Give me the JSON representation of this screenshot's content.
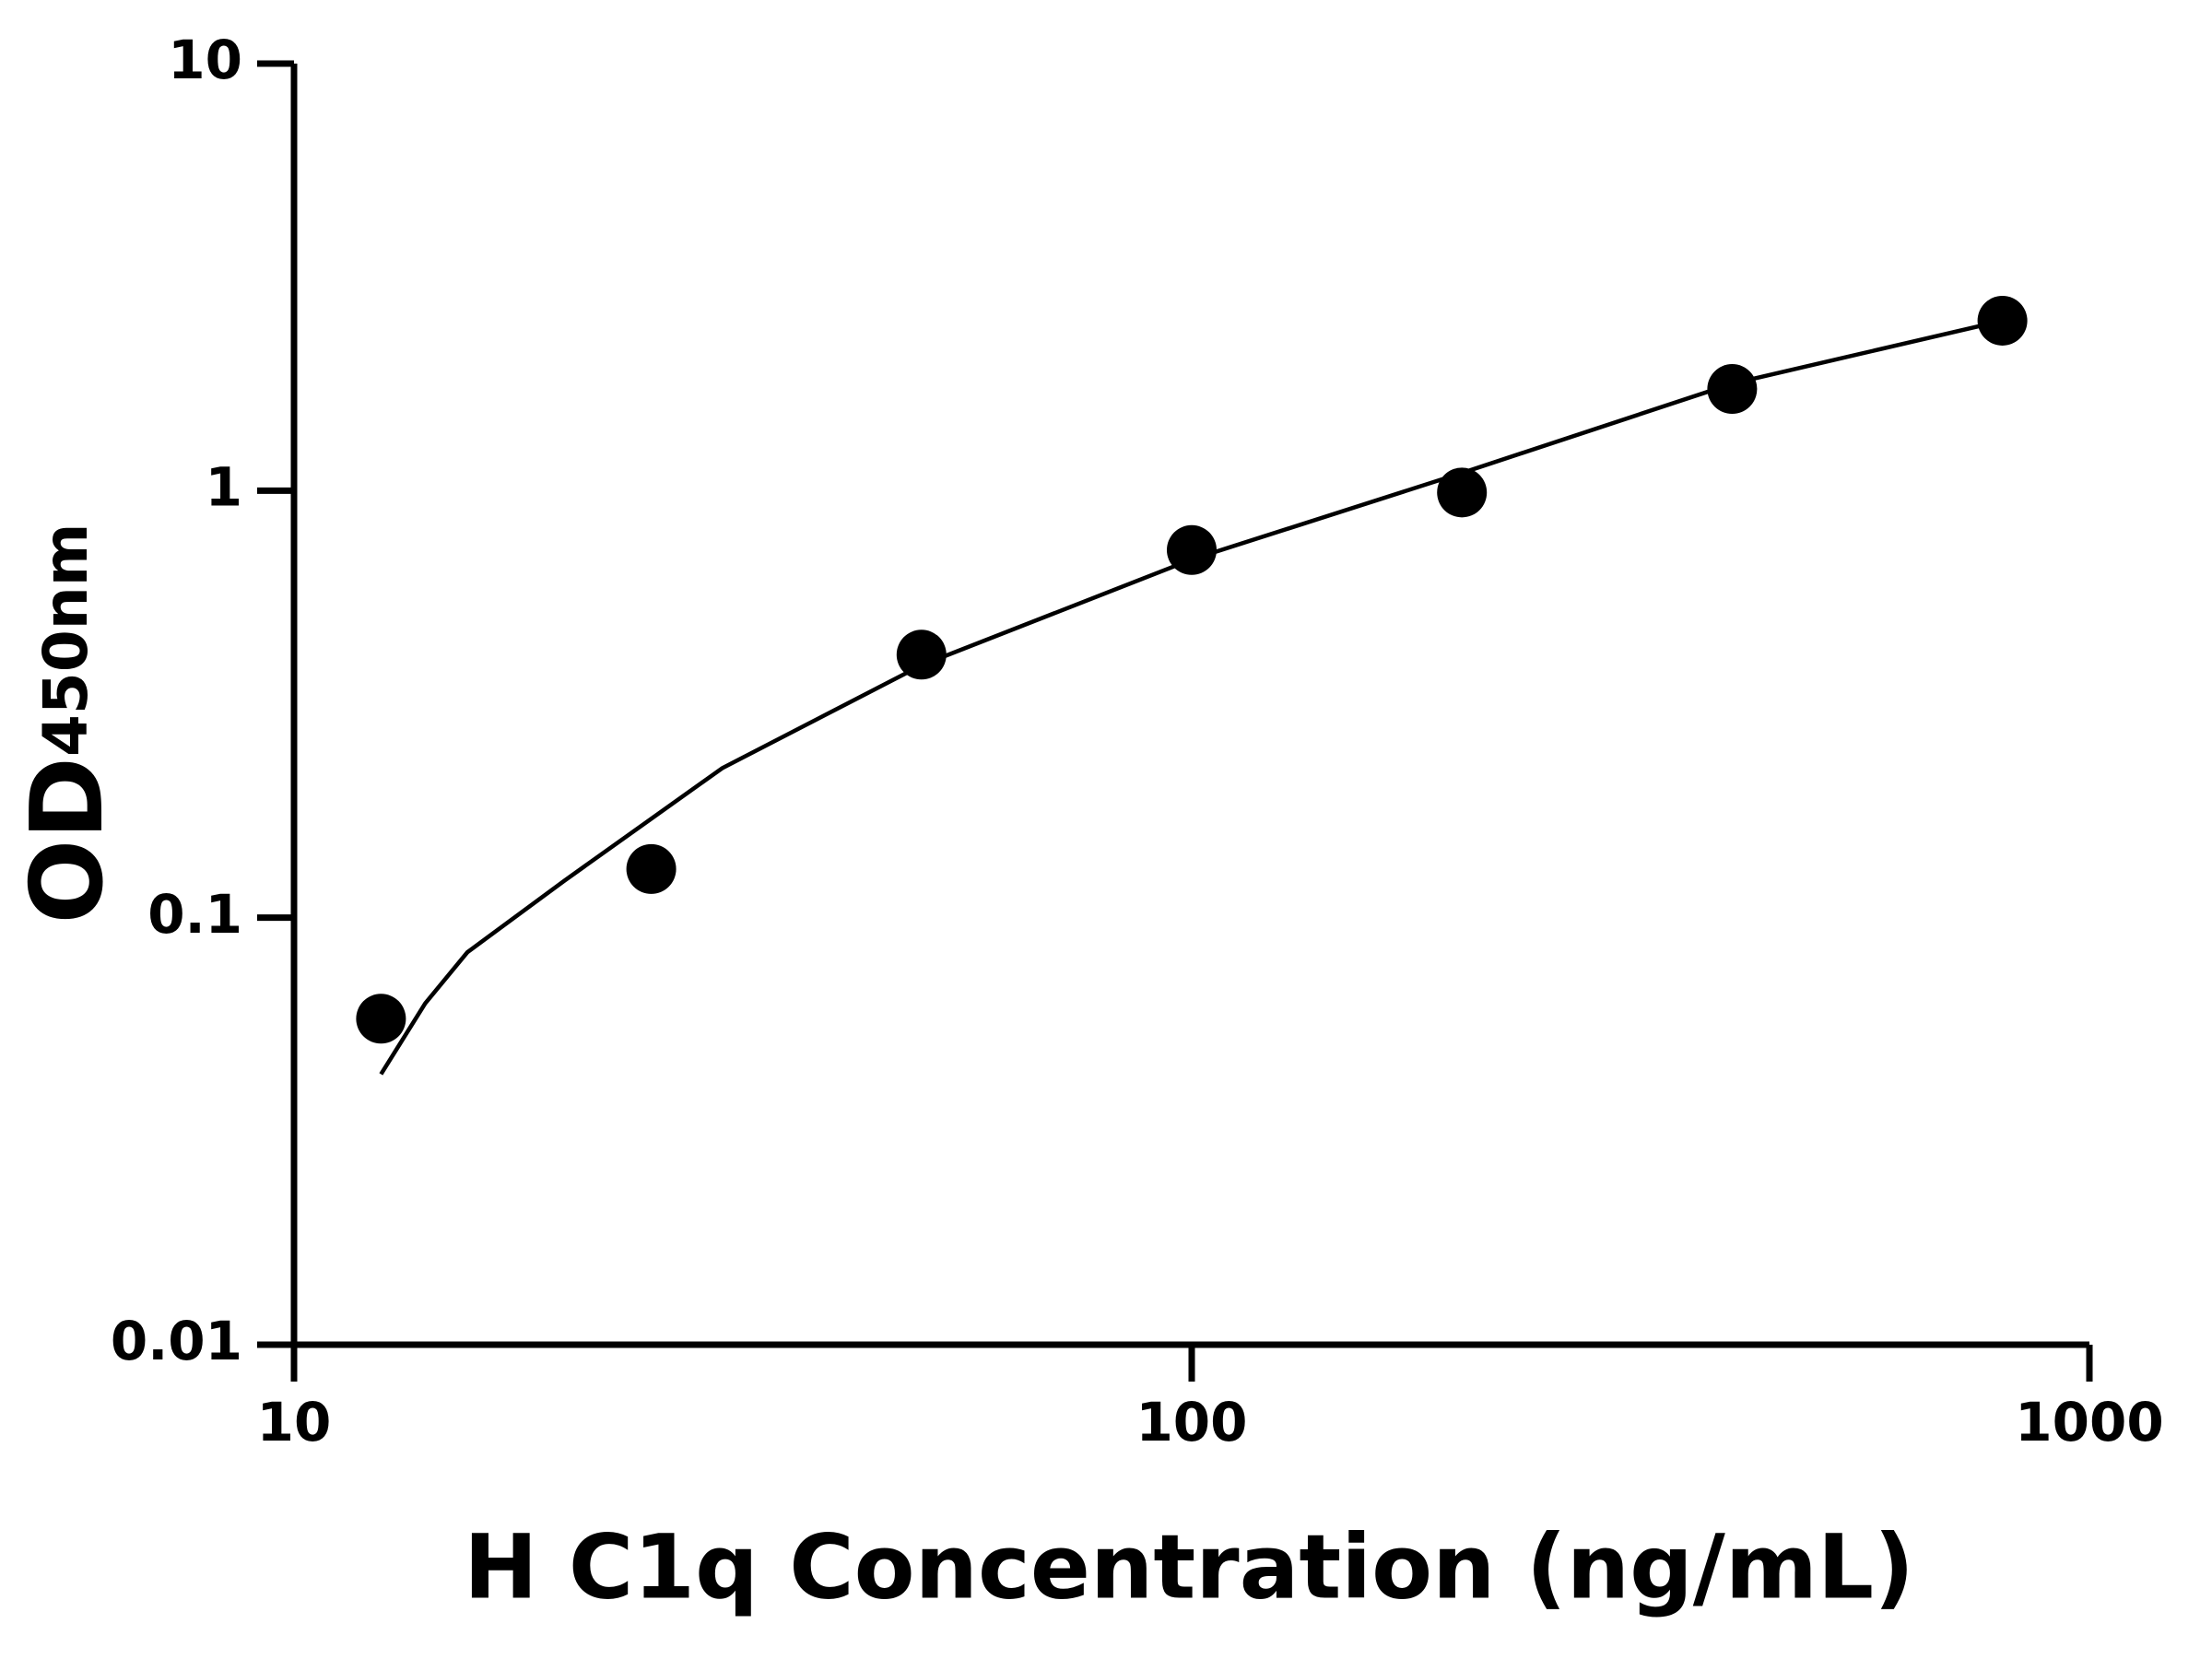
{
  "chart_data": {
    "type": "scatter",
    "x_label": "H C1q Concentration (ng/mL)",
    "y_label": "OD",
    "y_label_subscript": "450nm",
    "xscale": "log",
    "yscale": "log",
    "xlim": [
      10,
      1000
    ],
    "ylim": [
      0.01,
      10
    ],
    "xticks": [
      10,
      100,
      1000
    ],
    "yticks": [
      0.01,
      0.1,
      1,
      10
    ],
    "grid": false,
    "series": [
      {
        "type": "scatter",
        "color": "#000000",
        "x": [
          12.5,
          25,
          50,
          100,
          200,
          400,
          800
        ],
        "values": [
          0.058,
          0.13,
          0.413,
          0.726,
          0.99,
          1.73,
          2.5
        ]
      },
      {
        "type": "line",
        "color": "#000000",
        "x": [
          12.5,
          14,
          15.6,
          20,
          30,
          50,
          100,
          200,
          400,
          800
        ],
        "values": [
          0.043,
          0.063,
          0.083,
          0.122,
          0.224,
          0.39,
          0.69,
          1.1,
          1.78,
          2.5
        ]
      }
    ]
  }
}
